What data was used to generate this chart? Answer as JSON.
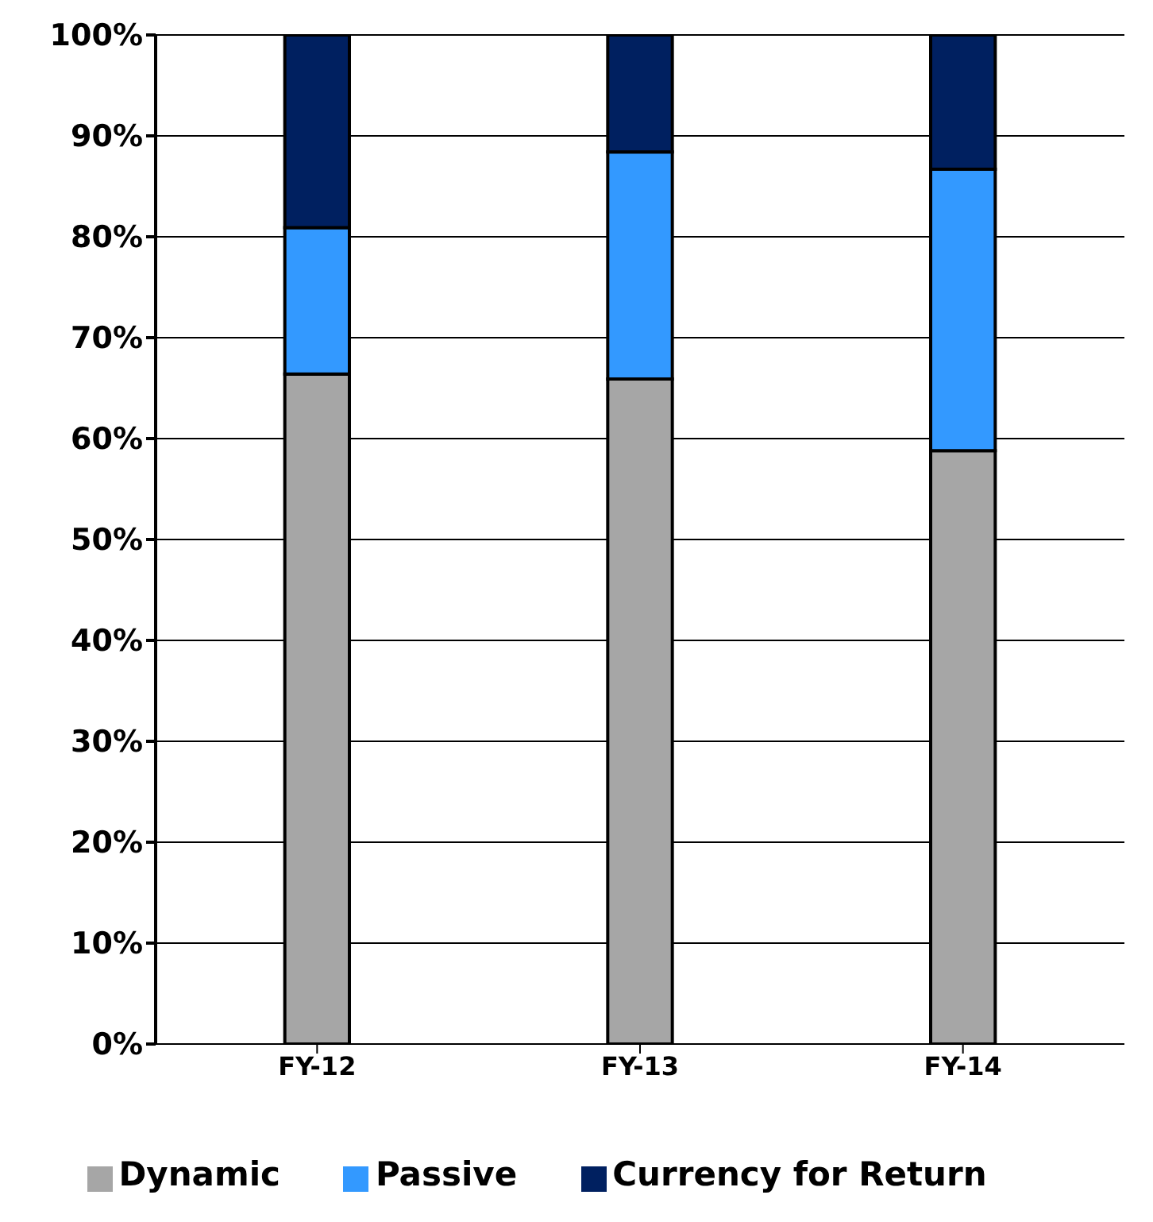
{
  "chart_data": {
    "type": "bar",
    "stacked": true,
    "categories": [
      "FY-12",
      "FY-13",
      "FY-14"
    ],
    "series": [
      {
        "name": "Dynamic",
        "color": "#a6a6a6",
        "values": [
          66.4,
          65.9,
          58.8
        ]
      },
      {
        "name": "Passive",
        "color": "#3399ff",
        "values": [
          14.5,
          22.5,
          27.9
        ]
      },
      {
        "name": "Currency for Return",
        "color": "#002060",
        "values": [
          19.1,
          11.6,
          13.3
        ]
      }
    ],
    "ylim": [
      0,
      100
    ],
    "yticks": [
      {
        "value": 0,
        "label": "0%"
      },
      {
        "value": 10,
        "label": "10%"
      },
      {
        "value": 20,
        "label": "20%"
      },
      {
        "value": 30,
        "label": "30%"
      },
      {
        "value": 40,
        "label": "40%"
      },
      {
        "value": 50,
        "label": "50%"
      },
      {
        "value": 60,
        "label": "60%"
      },
      {
        "value": 70,
        "label": "70%"
      },
      {
        "value": 80,
        "label": "80%"
      },
      {
        "value": 90,
        "label": "90%"
      },
      {
        "value": 100,
        "label": "100%"
      }
    ],
    "grid": "y",
    "legend": "bottom"
  }
}
